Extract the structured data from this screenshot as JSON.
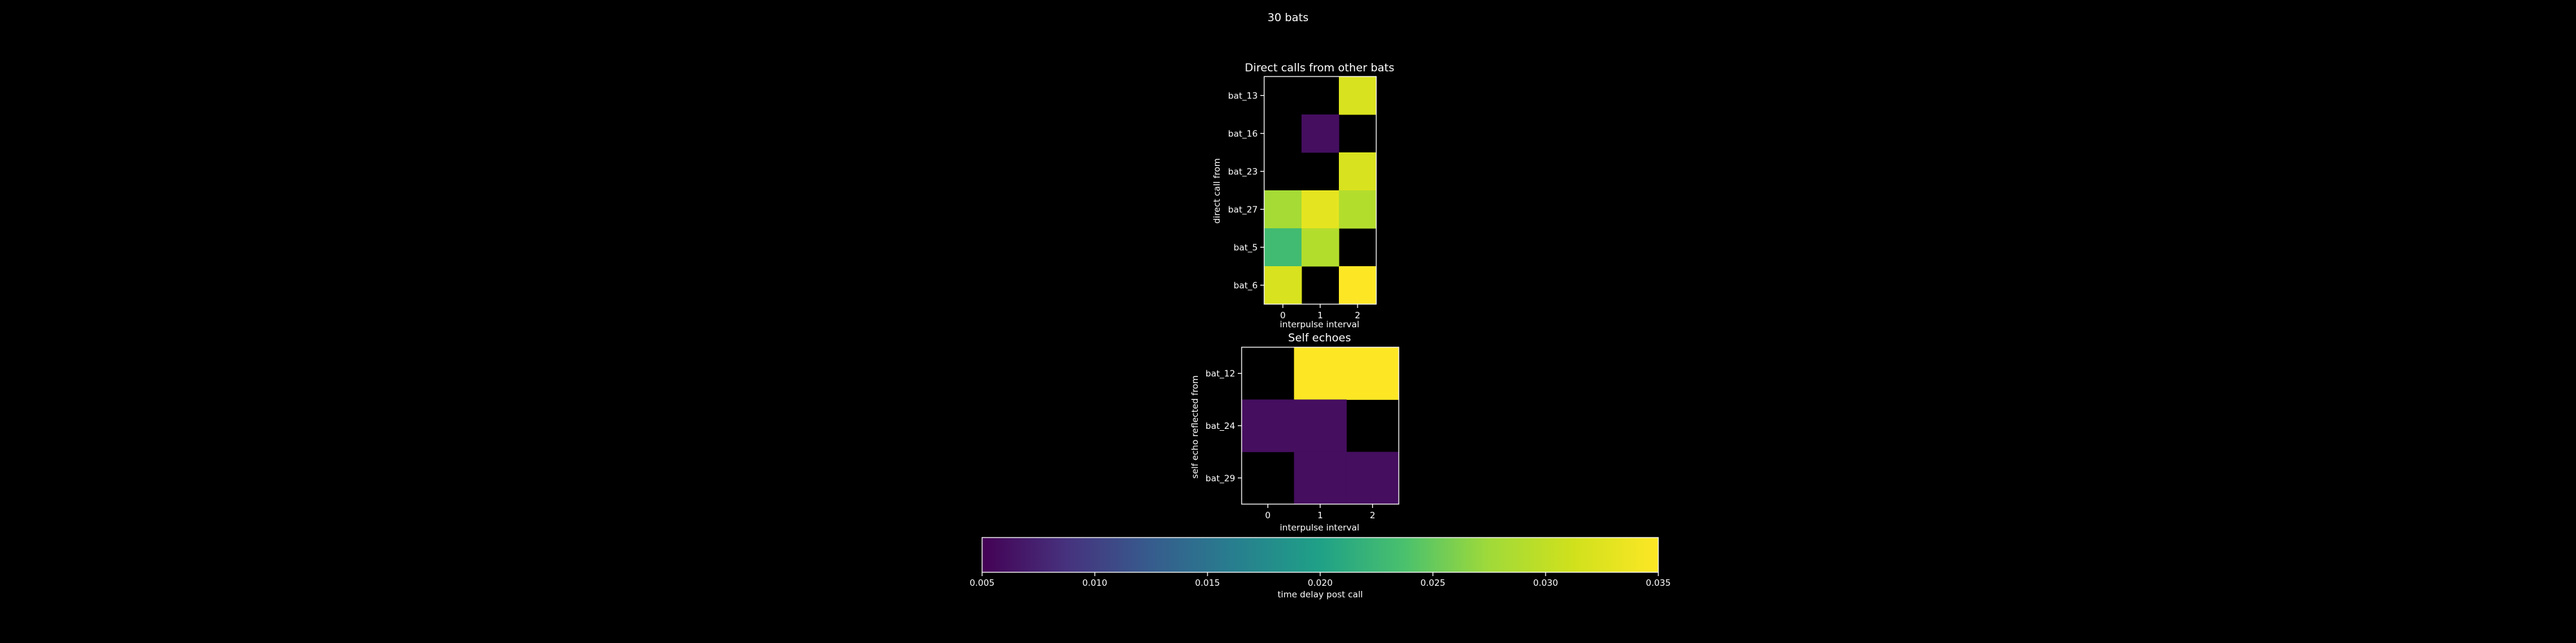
{
  "figure": {
    "title": "30 bats",
    "background": "#000000",
    "text_color": "#ffffff"
  },
  "chart_data": [
    {
      "type": "heatmap",
      "title": "Direct calls from other bats",
      "xlabel": "interpulse interval",
      "ylabel": "direct call from",
      "x_ticks": [
        "0",
        "1",
        "2"
      ],
      "y_ticks": [
        "bat_13",
        "bat_16",
        "bat_23",
        "bat_27",
        "bat_5",
        "bat_6"
      ],
      "values": [
        [
          null,
          null,
          0.032
        ],
        [
          null,
          0.006,
          null
        ],
        [
          null,
          null,
          0.032
        ],
        [
          0.028,
          0.033,
          0.029
        ],
        [
          0.023,
          0.029,
          null
        ],
        [
          0.032,
          null,
          0.035
        ]
      ],
      "missing_color": "#000000",
      "color_range": [
        0.005,
        0.035
      ]
    },
    {
      "type": "heatmap",
      "title": "Self echoes",
      "xlabel": "interpulse interval",
      "ylabel": "self echo reflected from",
      "x_ticks": [
        "0",
        "1",
        "2"
      ],
      "y_ticks": [
        "bat_12",
        "bat_24",
        "bat_29"
      ],
      "values": [
        [
          null,
          0.035,
          0.035
        ],
        [
          0.006,
          0.006,
          null
        ],
        [
          null,
          0.006,
          0.006
        ]
      ],
      "missing_color": "#000000",
      "color_range": [
        0.005,
        0.035
      ]
    }
  ],
  "colorbar": {
    "label": "time delay post call",
    "colormap": "viridis",
    "range": [
      0.005,
      0.035
    ],
    "ticks": [
      0.005,
      0.01,
      0.015,
      0.02,
      0.025,
      0.03,
      0.035
    ],
    "tick_labels": [
      "0.005",
      "0.010",
      "0.015",
      "0.020",
      "0.025",
      "0.030",
      "0.035"
    ]
  }
}
